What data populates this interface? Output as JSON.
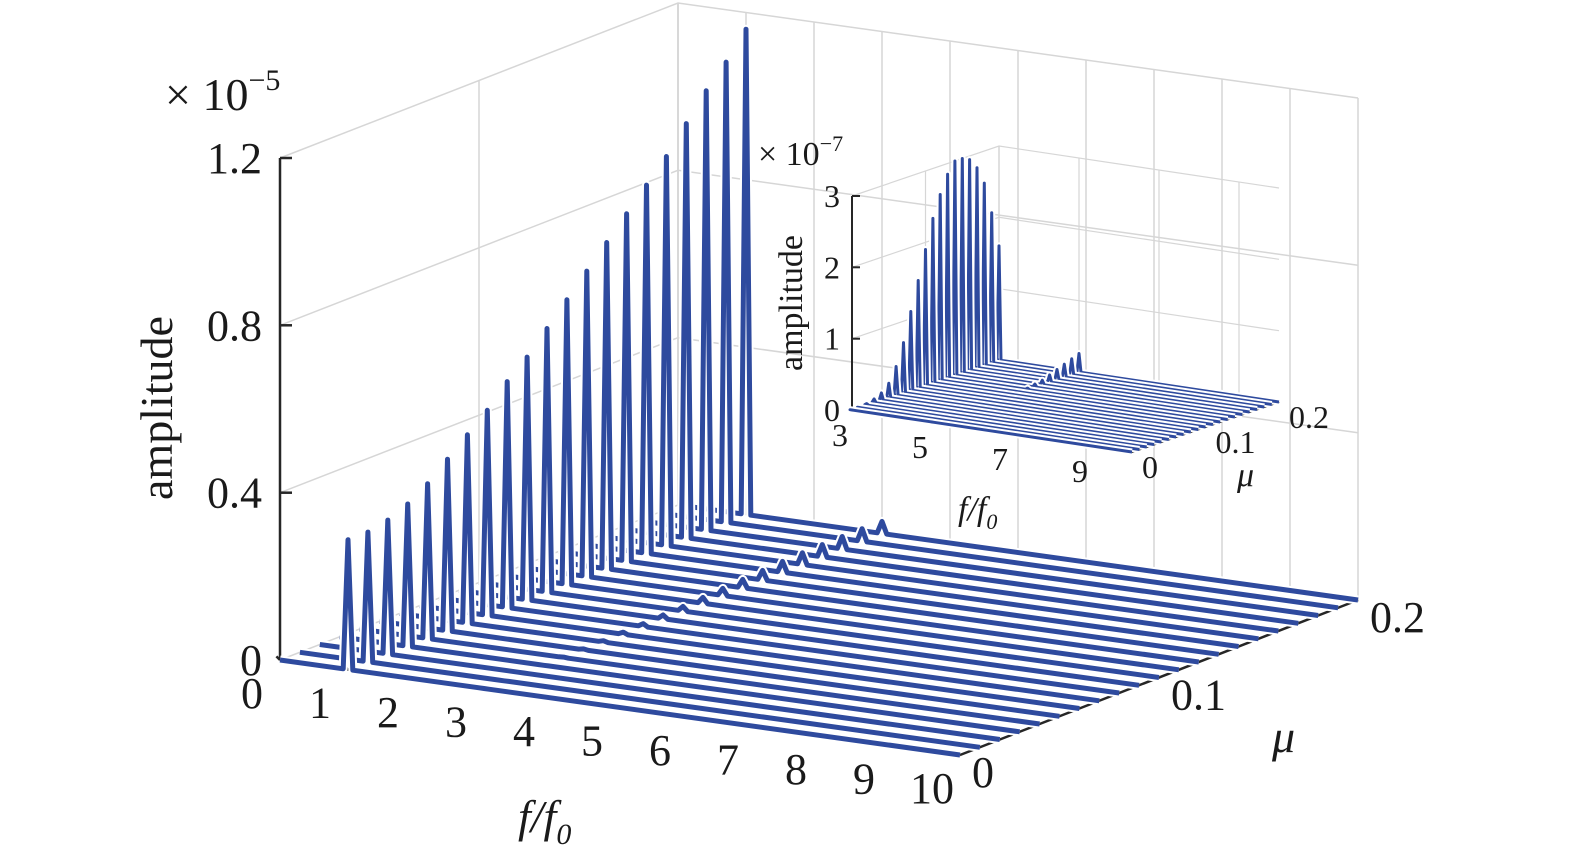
{
  "chart_data": [
    {
      "type": "waterfall-3d",
      "xlabel": "f/f",
      "xlabel_sub": "0",
      "ylabel": "μ",
      "zlabel": "amplitude",
      "multiplier_base": "× 10",
      "multiplier_exp": "−5",
      "xlim": [
        0,
        10
      ],
      "ylim": [
        0,
        0.2
      ],
      "zlim": [
        0,
        1.2e-05
      ],
      "x_ticks": [
        "0",
        "1",
        "2",
        "3",
        "4",
        "5",
        "6",
        "7",
        "8",
        "9",
        "10"
      ],
      "y_ticks": [
        "0",
        "0.1",
        "0.2"
      ],
      "z_ticks": [
        "0",
        "0.4",
        "0.8",
        "1.2"
      ],
      "grid": true,
      "line_color": "#2e4a9e",
      "mu_values": [
        0.0,
        0.01,
        0.02,
        0.03,
        0.04,
        0.05,
        0.06,
        0.07,
        0.08,
        0.09,
        0.1,
        0.11,
        0.12,
        0.13,
        0.14,
        0.15,
        0.16,
        0.17,
        0.18,
        0.19,
        0.2
      ],
      "peaks": [
        {
          "f": 1,
          "amplitudes": [
            3.1e-06,
            3.1e-06,
            3.2e-06,
            3.4e-06,
            3.7e-06,
            4.1e-06,
            4.5e-06,
            4.9e-06,
            5.4e-06,
            5.8e-06,
            6.3e-06,
            6.8e-06,
            7.3e-06,
            7.8e-06,
            8.3e-06,
            8.8e-06,
            9.3e-06,
            9.9e-06,
            1.05e-05,
            1.1e-05,
            1.16e-05
          ]
        },
        {
          "f": 3,
          "amplitudes": [
            0,
            0,
            0,
            0,
            1e-08,
            2e-08,
            3e-08,
            5e-08,
            7e-08,
            9e-08,
            1.1e-07,
            1.4e-07,
            1.7e-07,
            2e-07,
            2.3e-07,
            2.6e-07,
            2.8e-07,
            2.9e-07,
            3e-07,
            3e-07,
            2.9e-07
          ]
        }
      ]
    },
    {
      "type": "waterfall-3d",
      "xlabel": "f/f",
      "xlabel_sub": "0",
      "ylabel": "μ",
      "zlabel": "amplitude",
      "multiplier_base": "× 10",
      "multiplier_exp": "−7",
      "xlim": [
        3,
        10
      ],
      "ylim": [
        0,
        0.2
      ],
      "zlim": [
        0,
        3e-07
      ],
      "x_ticks": [
        "3",
        "5",
        "7",
        "9"
      ],
      "y_ticks": [
        "0",
        "0.1",
        "0.2"
      ],
      "z_ticks": [
        "0",
        "1",
        "2",
        "3"
      ],
      "grid": true,
      "line_color": "#2e4a9e",
      "mu_values": [
        0.0,
        0.01,
        0.02,
        0.03,
        0.04,
        0.05,
        0.06,
        0.07,
        0.08,
        0.09,
        0.1,
        0.11,
        0.12,
        0.13,
        0.14,
        0.15,
        0.16,
        0.17,
        0.18,
        0.19,
        0.2
      ],
      "peaks": [
        {
          "f": 3,
          "amplitudes": [
            0,
            0,
            2e-09,
            5e-09,
            1e-08,
            2e-08,
            4e-08,
            7e-08,
            1.1e-07,
            1.5e-07,
            1.9e-07,
            2.3e-07,
            2.6e-07,
            2.85e-07,
            3e-07,
            3e-07,
            2.95e-07,
            2.8e-07,
            2.55e-07,
            2.1e-07,
            1.6e-07
          ]
        },
        {
          "f": 5,
          "amplitudes": [
            0,
            0,
            0,
            0,
            0,
            0,
            0,
            0,
            0,
            0,
            0,
            0,
            0,
            2e-09,
            4e-09,
            6e-09,
            1e-08,
            1.4e-08,
            1.8e-08,
            2.2e-08,
            2.6e-08
          ]
        }
      ]
    }
  ]
}
